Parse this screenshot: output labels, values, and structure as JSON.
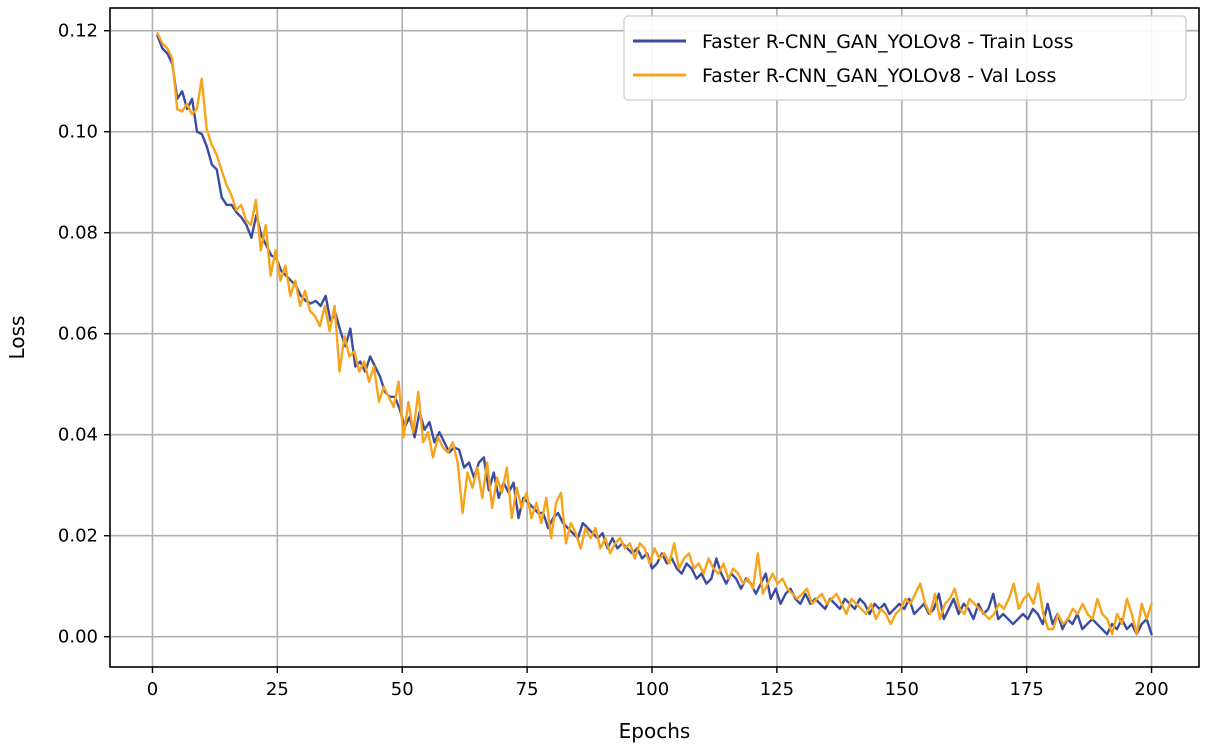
{
  "chart_data": {
    "type": "line",
    "title": "",
    "xlabel": "Epochs",
    "ylabel": "Loss",
    "xlim": [
      -8.5,
      209.5
    ],
    "ylim": [
      -0.006,
      0.1245
    ],
    "grid": true,
    "legend_position": "top-right",
    "x_ticks": [
      0,
      25,
      50,
      75,
      100,
      125,
      150,
      175,
      200
    ],
    "x_tick_labels": [
      "0",
      "25",
      "50",
      "75",
      "100",
      "125",
      "150",
      "175",
      "200"
    ],
    "y_ticks": [
      0.0,
      0.02,
      0.04,
      0.06,
      0.08,
      0.1,
      0.12
    ],
    "y_tick_labels": [
      "0.00",
      "0.02",
      "0.04",
      "0.06",
      "0.08",
      "0.10",
      "0.12"
    ],
    "x_range": [
      1,
      200
    ],
    "series": [
      {
        "name": "Faster R-CNN_GAN_YOLOv8 - Train Loss",
        "color": "#3b4ba0",
        "values": [
          0.119,
          0.1165,
          0.1155,
          0.1135,
          0.1065,
          0.108,
          0.1045,
          0.1065,
          0.1,
          0.0995,
          0.097,
          0.0935,
          0.0925,
          0.087,
          0.0855,
          0.0855,
          0.084,
          0.083,
          0.0815,
          0.079,
          0.0835,
          0.0795,
          0.0775,
          0.0755,
          0.075,
          0.0725,
          0.0715,
          0.0705,
          0.0695,
          0.0675,
          0.0665,
          0.066,
          0.0665,
          0.0655,
          0.0675,
          0.0625,
          0.064,
          0.0605,
          0.0575,
          0.061,
          0.0535,
          0.0545,
          0.0525,
          0.0555,
          0.0535,
          0.0515,
          0.0485,
          0.0475,
          0.0475,
          0.045,
          0.0415,
          0.0435,
          0.0395,
          0.0445,
          0.041,
          0.0425,
          0.0385,
          0.0405,
          0.0385,
          0.0365,
          0.0375,
          0.037,
          0.0335,
          0.0345,
          0.0315,
          0.0345,
          0.0355,
          0.029,
          0.0325,
          0.0275,
          0.0305,
          0.0285,
          0.0305,
          0.0235,
          0.0275,
          0.0265,
          0.0255,
          0.0245,
          0.0245,
          0.0215,
          0.0235,
          0.0245,
          0.0225,
          0.0215,
          0.0205,
          0.0195,
          0.0225,
          0.0215,
          0.0205,
          0.0195,
          0.0205,
          0.0175,
          0.0195,
          0.0175,
          0.0185,
          0.0175,
          0.0165,
          0.0175,
          0.0155,
          0.0165,
          0.0135,
          0.0145,
          0.0165,
          0.0145,
          0.0155,
          0.0135,
          0.0125,
          0.0145,
          0.0135,
          0.0115,
          0.0125,
          0.0105,
          0.0115,
          0.0155,
          0.0125,
          0.0105,
          0.0125,
          0.0115,
          0.0095,
          0.0115,
          0.0105,
          0.0085,
          0.0105,
          0.0125,
          0.0075,
          0.0095,
          0.0065,
          0.0085,
          0.0095,
          0.0075,
          0.0065,
          0.0085,
          0.0065,
          0.0075,
          0.0065,
          0.0055,
          0.0075,
          0.0065,
          0.0055,
          0.0075,
          0.0065,
          0.0055,
          0.0075,
          0.0065,
          0.0045,
          0.0065,
          0.0055,
          0.0065,
          0.0045,
          0.0055,
          0.0065,
          0.0055,
          0.0075,
          0.0045,
          0.0055,
          0.0065,
          0.0045,
          0.0055,
          0.0085,
          0.0035,
          0.0055,
          0.0075,
          0.0045,
          0.0065,
          0.0055,
          0.0035,
          0.0065,
          0.0045,
          0.0055,
          0.0085,
          0.0035,
          0.0045,
          0.0035,
          0.0025,
          0.0035,
          0.0045,
          0.0035,
          0.0055,
          0.0045,
          0.0025,
          0.0065,
          0.0025,
          0.0045,
          0.0015,
          0.0035,
          0.0025,
          0.0045,
          0.0015,
          0.0025,
          0.0035,
          0.0025,
          0.0015,
          0.0005,
          0.0025,
          0.0015,
          0.0035,
          0.0015,
          0.0025,
          0.0005,
          0.0025,
          0.0035,
          0.0005
        ]
      },
      {
        "name": "Faster R-CNN_GAN_YOLOv8 - Val Loss",
        "color": "#f7a41d",
        "values": [
          0.1195,
          0.1175,
          0.1165,
          0.1145,
          0.1045,
          0.104,
          0.1055,
          0.1035,
          0.1045,
          0.1105,
          0.1005,
          0.0975,
          0.0955,
          0.0925,
          0.0895,
          0.0875,
          0.0845,
          0.0855,
          0.0825,
          0.0815,
          0.0865,
          0.0765,
          0.0815,
          0.0715,
          0.0765,
          0.0705,
          0.0735,
          0.0675,
          0.0705,
          0.0655,
          0.0685,
          0.0645,
          0.0635,
          0.0615,
          0.0655,
          0.0605,
          0.0655,
          0.0525,
          0.0595,
          0.0555,
          0.0565,
          0.0525,
          0.0545,
          0.0505,
          0.0535,
          0.0465,
          0.0495,
          0.0475,
          0.0455,
          0.0505,
          0.0395,
          0.0465,
          0.0405,
          0.0485,
          0.0385,
          0.0405,
          0.0355,
          0.0395,
          0.0375,
          0.0365,
          0.0385,
          0.0345,
          0.0245,
          0.0325,
          0.0295,
          0.0335,
          0.0275,
          0.0345,
          0.0255,
          0.0315,
          0.0285,
          0.0335,
          0.0235,
          0.0295,
          0.0255,
          0.0285,
          0.0235,
          0.0265,
          0.0225,
          0.0275,
          0.0195,
          0.0265,
          0.0285,
          0.0185,
          0.0225,
          0.0205,
          0.0175,
          0.0215,
          0.0195,
          0.0215,
          0.0175,
          0.0195,
          0.0165,
          0.0185,
          0.0195,
          0.0175,
          0.0185,
          0.0155,
          0.0185,
          0.0175,
          0.0145,
          0.0175,
          0.0155,
          0.0165,
          0.0145,
          0.0185,
          0.0135,
          0.0155,
          0.0165,
          0.0135,
          0.0145,
          0.0125,
          0.0155,
          0.0135,
          0.0125,
          0.0145,
          0.0115,
          0.0135,
          0.0125,
          0.0105,
          0.0115,
          0.0095,
          0.0165,
          0.0085,
          0.0105,
          0.0125,
          0.0105,
          0.0115,
          0.0095,
          0.0085,
          0.0075,
          0.0085,
          0.0095,
          0.0065,
          0.0075,
          0.0085,
          0.0065,
          0.0075,
          0.0085,
          0.0065,
          0.0045,
          0.0075,
          0.0065,
          0.0055,
          0.0045,
          0.0065,
          0.0035,
          0.0055,
          0.0045,
          0.0025,
          0.0045,
          0.0055,
          0.0075,
          0.0065,
          0.0085,
          0.0105,
          0.0065,
          0.0045,
          0.0085,
          0.0035,
          0.0065,
          0.0075,
          0.0095,
          0.0055,
          0.0045,
          0.0075,
          0.0065,
          0.0055,
          0.0045,
          0.0035,
          0.0045,
          0.0065,
          0.0055,
          0.0075,
          0.0105,
          0.0055,
          0.0075,
          0.0085,
          0.0065,
          0.0105,
          0.0045,
          0.0015,
          0.0015,
          0.0045,
          0.0025,
          0.0035,
          0.0055,
          0.0045,
          0.0065,
          0.0045,
          0.0035,
          0.0075,
          0.0045,
          0.0035,
          0.0005,
          0.0045,
          0.0025,
          0.0075,
          0.0045,
          0.0005,
          0.0065,
          0.0035,
          0.0065
        ]
      }
    ]
  }
}
